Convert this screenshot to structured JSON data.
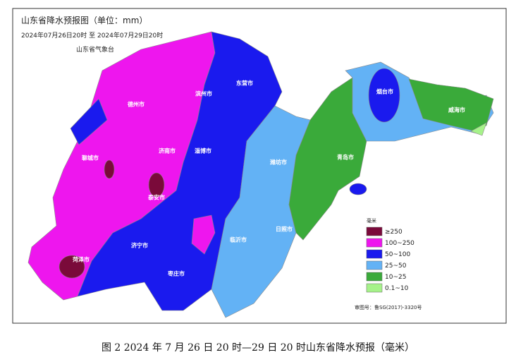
{
  "map": {
    "title": "山东省降水预报图（单位：mm）",
    "period": "2024年07月26日20时  至  2024年07月29日20时",
    "agency": "山东省气象台",
    "cities": [
      "德州市",
      "滨州市",
      "东营市",
      "烟台市",
      "威海市",
      "聊城市",
      "济南市",
      "淄博市",
      "潍坊市",
      "青岛市",
      "泰安市",
      "日照市",
      "临沂市",
      "济宁市",
      "枣庄市",
      "菏泽市"
    ],
    "legend": {
      "title": "毫米",
      "items": [
        {
          "label": "≥250",
          "color": "#7a0a3a"
        },
        {
          "label": "100~250",
          "color": "#ee16ee"
        },
        {
          "label": "50~100",
          "color": "#1a1aee"
        },
        {
          "label": "25~50",
          "color": "#63b2f5"
        },
        {
          "label": "10~25",
          "color": "#3aaa3a"
        },
        {
          "label": "0.1~10",
          "color": "#a6f28a"
        }
      ]
    },
    "approval": "审图号：鲁SG(2017)-3320号"
  },
  "caption": "图 2 2024 年 7 月 26 日 20 时—29 日 20 时山东省降水预报（毫米）"
}
